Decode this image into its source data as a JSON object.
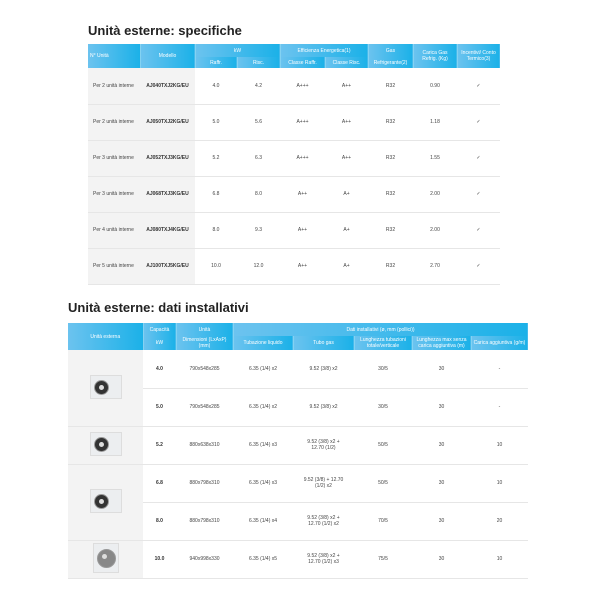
{
  "spec": {
    "title": "Unità esterne: specifiche",
    "headers": {
      "n_unita": "N° Unità",
      "modello": "Modello",
      "kw": "kW",
      "raffr": "Raffr.",
      "risc": "Risc.",
      "efficienza": "Efficienza Energetica(1)",
      "classe_raffr": "Classe Raffr.",
      "classe_risc": "Classe Risc.",
      "gas": "Gas",
      "refrigerante": "Refrigerante(2)",
      "carica": "Carica Gas Refrig. (Kg)",
      "incentivi": "Incentivi/ Conto Termico(3)"
    },
    "rows": [
      [
        "Per 2 unità interne",
        "AJ040TXJ2KG/EU",
        "4.0",
        "4.2",
        "A+++",
        "A++",
        "R32",
        "0.90",
        "✓"
      ],
      [
        "Per 2 unità interne",
        "AJ050TXJ2KG/EU",
        "5.0",
        "5.6",
        "A+++",
        "A++",
        "R32",
        "1.18",
        "✓"
      ],
      [
        "Per 3 unità interne",
        "AJ052TXJ3KG/EU",
        "5.2",
        "6.3",
        "A+++",
        "A++",
        "R32",
        "1.55",
        "✓"
      ],
      [
        "Per 3 unità interne",
        "AJ068TXJ3KG/EU",
        "6.8",
        "8.0",
        "A++",
        "A+",
        "R32",
        "2.00",
        "✓"
      ],
      [
        "Per 4 unità interne",
        "AJ080TXJ4KG/EU",
        "8.0",
        "9.3",
        "A++",
        "A+",
        "R32",
        "2.00",
        "✓"
      ],
      [
        "Per 5 unità interne",
        "AJ100TXJ5KG/EU",
        "10.0",
        "12.0",
        "A++",
        "A+",
        "R32",
        "2.70",
        "✓"
      ]
    ]
  },
  "install": {
    "title": "Unità esterne: dati installativi",
    "headers": {
      "unita_esterna": "Unità esterna",
      "capacita": "Capacità",
      "kw": "kW",
      "unita": "Unità",
      "dimensioni": "Dimensioni (LxAxP) (mm)",
      "dati": "Dati installativi (ø, mm (pollici))",
      "liquido": "Tubazione liquido",
      "gas": "Tubo gas",
      "lunghezza": "Lunghezza tubazioni totale/verticale",
      "lunghezza_max": "Lunghezza max senza carica aggiuntiva (m)",
      "carica": "Carica aggiuntiva (g/m)"
    },
    "rows": [
      [
        "4.0",
        "790x548x285",
        "6.35 (1/4) x2",
        "9.52 (3/8) x2",
        "30/5",
        "30",
        "-"
      ],
      [
        "5.0",
        "790x548x285",
        "6.35 (1/4) x2",
        "9.52 (3/8) x2",
        "30/5",
        "30",
        "-"
      ],
      [
        "5.2",
        "880x638x310",
        "6.35 (1/4) x3",
        "9.52 (3/8) x2 + 12.70 (1/2)",
        "50/5",
        "30",
        "10"
      ],
      [
        "6.8",
        "880x798x310",
        "6.35 (1/4) x3",
        "9.52 (3/8) + 12.70 (1/2) x2",
        "50/5",
        "30",
        "10"
      ],
      [
        "8.0",
        "880x798x310",
        "6.35 (1/4) x4",
        "9.52 (3/8) x2 + 12.70 (1/2) x2",
        "70/5",
        "30",
        "20"
      ],
      [
        "10.0",
        "940x998x330",
        "6.35 (1/4) x5",
        "9.52 (3/8) x2 + 12.70 (1/2) x3",
        "75/5",
        "30",
        "10"
      ]
    ]
  }
}
